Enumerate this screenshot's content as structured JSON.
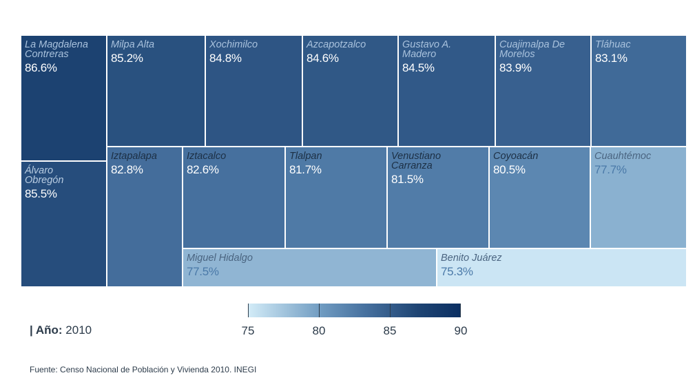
{
  "chart_data": {
    "type": "treemap",
    "color_scale": {
      "min": 75,
      "max": 90,
      "ticks": [
        "75",
        "80",
        "85",
        "90"
      ],
      "colors": [
        "#d3ecf8",
        "#6e9ac0",
        "#47719f",
        "#1e4473",
        "#0b2f62"
      ]
    },
    "cells": [
      {
        "name": "La Magdalena Contreras",
        "value": 86.6,
        "label": "86.6%"
      },
      {
        "name": "Milpa Alta",
        "value": 85.2,
        "label": "85.2%"
      },
      {
        "name": "Xochimilco",
        "value": 84.8,
        "label": "84.8%"
      },
      {
        "name": "Azcapotzalco",
        "value": 84.6,
        "label": "84.6%"
      },
      {
        "name": "Gustavo A. Madero",
        "value": 84.5,
        "label": "84.5%"
      },
      {
        "name": "Cuajimalpa De Morelos",
        "value": 83.9,
        "label": "83.9%"
      },
      {
        "name": "Tláhuac",
        "value": 83.1,
        "label": "83.1%"
      },
      {
        "name": "Álvaro Obregón",
        "value": 85.5,
        "label": "85.5%"
      },
      {
        "name": "Iztapalapa",
        "value": 82.8,
        "label": "82.8%"
      },
      {
        "name": "Iztacalco",
        "value": 82.6,
        "label": "82.6%"
      },
      {
        "name": "Tlalpan",
        "value": 81.7,
        "label": "81.7%"
      },
      {
        "name": "Venustiano Carranza",
        "value": 81.5,
        "label": "81.5%"
      },
      {
        "name": "Coyoacán",
        "value": 80.5,
        "label": "80.5%"
      },
      {
        "name": "Cuauhtémoc",
        "value": 77.7,
        "label": "77.7%"
      },
      {
        "name": "Miguel Hidalgo",
        "value": 77.5,
        "label": "77.5%"
      },
      {
        "name": "Benito Juárez",
        "value": 75.3,
        "label": "75.3%"
      }
    ]
  },
  "footer": {
    "year_prefix": "| Año:",
    "year_value": "2010",
    "source": "Fuente: Censo Nacional de Población y Vivienda 2010. INEGI"
  }
}
